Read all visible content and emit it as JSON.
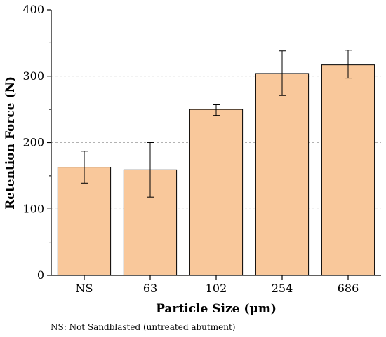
{
  "chart_data": {
    "type": "bar",
    "categories": [
      "NS",
      "63",
      "102",
      "254",
      "686"
    ],
    "values": [
      163,
      159,
      250,
      304,
      317
    ],
    "error_low": [
      139,
      118,
      241,
      271,
      297
    ],
    "error_high": [
      187,
      200,
      257,
      338,
      339
    ],
    "xlabel": "Particle Size (μm)",
    "ylabel": "Retention Force (N)",
    "ylim": [
      0,
      400
    ],
    "yticks": [
      0,
      100,
      200,
      300,
      400
    ],
    "grid": "horizontal dashed",
    "legend": "none",
    "colors": {
      "bar_fill": "#f9c89b",
      "bar_stroke": "#000000",
      "grid": "#999999"
    }
  },
  "footnote": "NS: Not Sandblasted (untreated abutment)"
}
